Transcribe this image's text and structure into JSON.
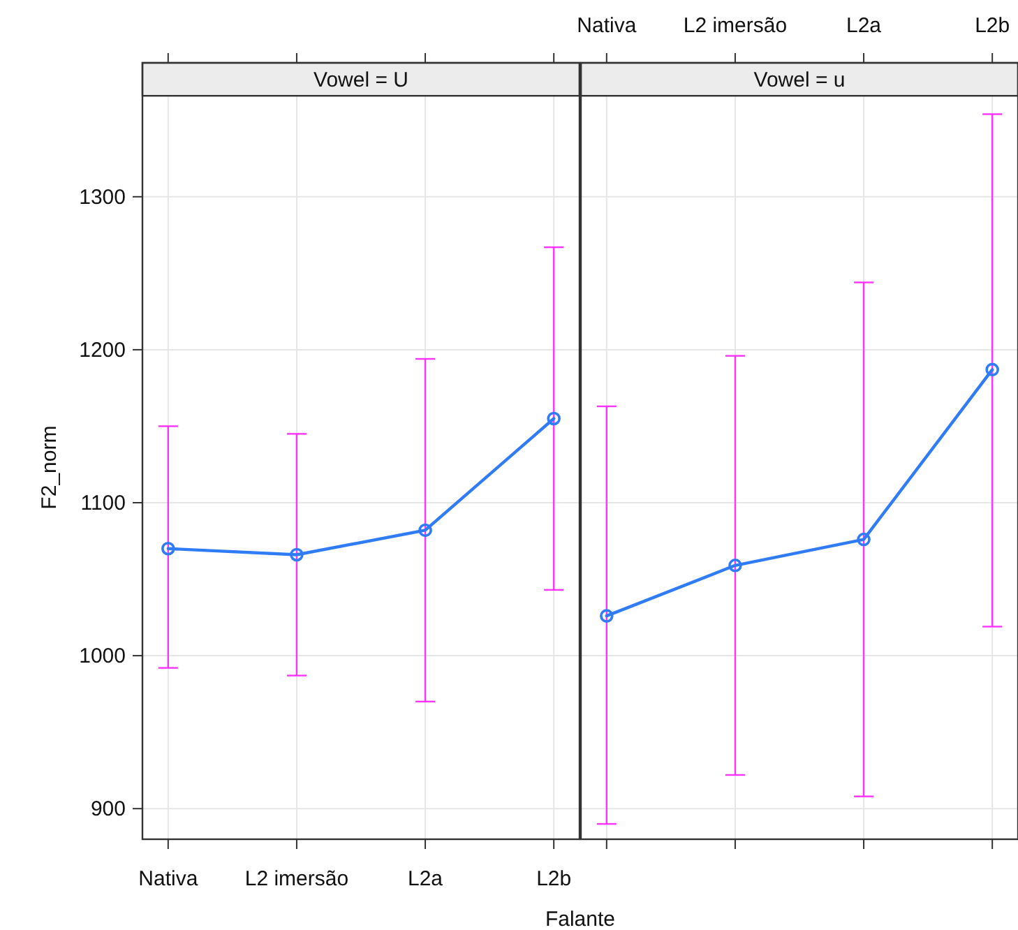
{
  "chart_data": [
    {
      "type": "line",
      "title": "Vowel = U",
      "xlabel": "Falante",
      "ylabel": "F2_norm",
      "categories": [
        "Nativa",
        "L2 imersão",
        "L2a",
        "L2b"
      ],
      "ylim": [
        880,
        1366
      ],
      "yticks": [
        900,
        1000,
        1100,
        1200,
        1300
      ],
      "grid": true,
      "marker": "circle",
      "series": [
        {
          "color": "#2f7cf6",
          "values": [
            1070,
            1066,
            1082,
            1155
          ],
          "errors": [
            [
              992,
              1150
            ],
            [
              987,
              1145
            ],
            [
              970,
              1194
            ],
            [
              1043,
              1267
            ]
          ]
        }
      ]
    },
    {
      "type": "line",
      "title": "Vowel = u",
      "categories": [
        "Nativa",
        "L2 imersão",
        "L2a",
        "L2b"
      ],
      "ylim": [
        880,
        1366
      ],
      "yticks": [
        900,
        1000,
        1100,
        1200,
        1300
      ],
      "grid": true,
      "marker": "circle",
      "tick_labels": "x",
      "series": [
        {
          "color": "#2f7cf6",
          "values": [
            1026,
            1059,
            1076,
            1187
          ],
          "errors": [
            [
              890,
              1163
            ],
            [
              922,
              1196
            ],
            [
              908,
              1244
            ],
            [
              1019,
              1354
            ]
          ]
        }
      ]
    }
  ]
}
